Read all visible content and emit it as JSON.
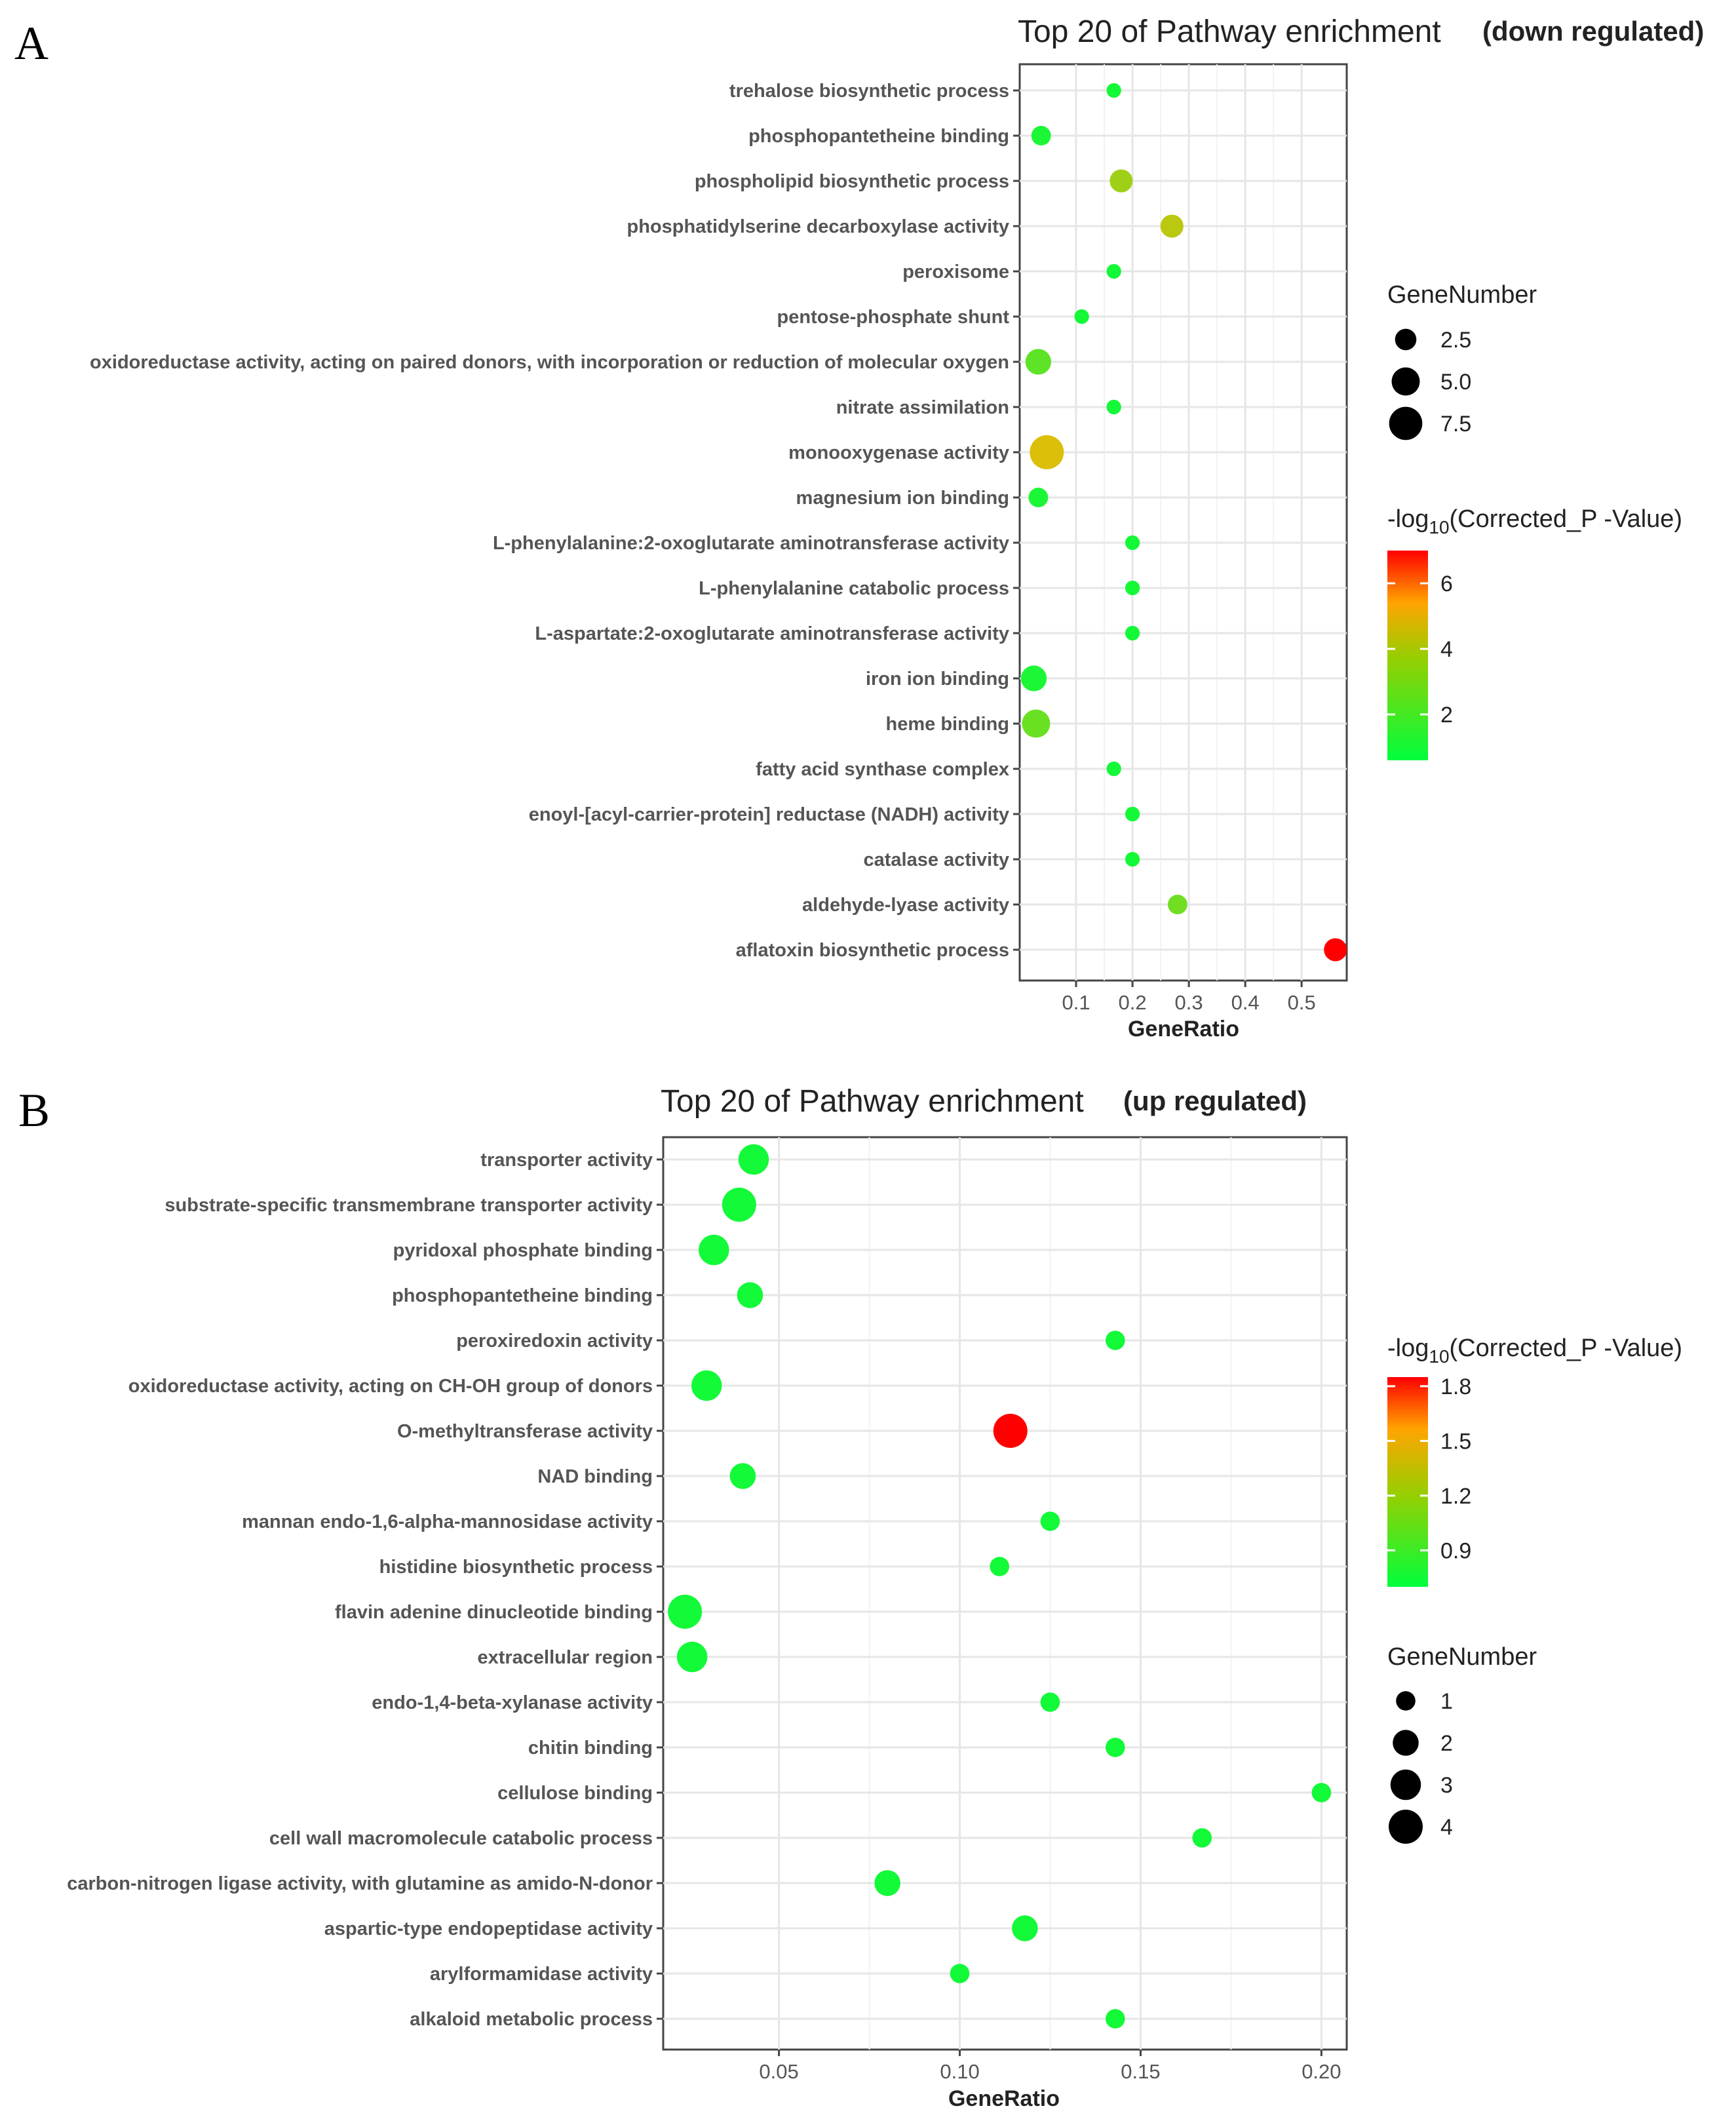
{
  "figure": {
    "panel_a_letter": "A",
    "panel_b_letter": "B"
  },
  "chart_data": [
    {
      "type": "scatter",
      "panel": "A",
      "title": "Top 20 of Pathway enrichment",
      "subtitle": "(down regulated)",
      "xlabel": "GeneRatio",
      "ylabel": "",
      "xlim": [
        0.0,
        0.58
      ],
      "xticks": [
        0.1,
        0.2,
        0.3,
        0.4,
        0.5
      ],
      "xtick_labels": [
        "0.1",
        "0.2",
        "0.3",
        "0.4",
        "0.5"
      ],
      "grid": true,
      "size_legend": {
        "title": "GeneNumber",
        "values": [
          2.5,
          5.0,
          7.5
        ],
        "labels": [
          "2.5",
          "5.0",
          "7.5"
        ]
      },
      "color_legend": {
        "title_prefix": "-log",
        "title_sub": "10",
        "title_suffix": "(Corrected_P -Value)",
        "min": 0.6,
        "max": 7.0,
        "ticks": [
          6,
          4,
          2
        ],
        "tick_labels": [
          "6",
          "4",
          "2"
        ],
        "low_color": "#00ff3c",
        "mid_color": "#ffb400",
        "high_color": "#ff0000"
      },
      "terms": [
        "trehalose biosynthetic process",
        "phosphopantetheine binding",
        "phospholipid biosynthetic process",
        "phosphatidylserine decarboxylase activity",
        "peroxisome",
        "pentose-phosphate shunt",
        "oxidoreductase activity, acting on paired donors, with incorporation or reduction of molecular oxygen",
        "nitrate assimilation",
        "monooxygenase activity",
        "magnesium ion binding",
        "L-phenylalanine:2-oxoglutarate aminotransferase activity",
        "L-phenylalanine catabolic process",
        "L-aspartate:2-oxoglutarate aminotransferase activity",
        "iron ion binding",
        "heme binding",
        "fatty acid synthase complex",
        "enoyl-[acyl-carrier-protein] reductase (NADH) activity",
        "catalase activity",
        "aldehyde-lyase activity",
        "aflatoxin biosynthetic process"
      ],
      "gene_ratio": [
        0.167,
        0.038,
        0.18,
        0.27,
        0.167,
        0.11,
        0.033,
        0.167,
        0.048,
        0.033,
        0.2,
        0.2,
        0.2,
        0.025,
        0.029,
        0.167,
        0.2,
        0.2,
        0.28,
        0.56
      ],
      "gene_number": [
        1,
        2,
        3,
        3,
        1,
        1,
        4,
        1,
        8,
        2,
        1,
        1,
        1,
        4,
        5,
        1,
        1,
        1,
        2,
        3
      ],
      "neg_log10_p": [
        0.9,
        1.0,
        3.0,
        3.4,
        0.9,
        0.9,
        2.0,
        0.9,
        3.9,
        1.0,
        0.9,
        0.9,
        0.9,
        1.0,
        2.2,
        0.9,
        0.9,
        0.9,
        2.3,
        7.0
      ]
    },
    {
      "type": "scatter",
      "panel": "B",
      "title": "Top 20 of Pathway enrichment",
      "subtitle": "(up regulated)",
      "xlabel": "GeneRatio",
      "ylabel": "",
      "xlim": [
        0.018,
        0.207
      ],
      "xticks": [
        0.05,
        0.1,
        0.15,
        0.2
      ],
      "xtick_labels": [
        "0.05",
        "0.10",
        "0.15",
        "0.20"
      ],
      "grid": true,
      "size_legend": {
        "title": "GeneNumber",
        "values": [
          1,
          2,
          3,
          4
        ],
        "labels": [
          "1",
          "2",
          "3",
          "4"
        ]
      },
      "color_legend": {
        "title_prefix": "-log",
        "title_sub": "10",
        "title_suffix": "(Corrected_P -Value)",
        "min": 0.7,
        "max": 1.85,
        "ticks": [
          1.8,
          1.5,
          1.2,
          0.9
        ],
        "tick_labels": [
          "1.8",
          "1.5",
          "1.2",
          "0.9"
        ],
        "low_color": "#00ff3c",
        "mid_color": "#ffb400",
        "high_color": "#ff0000"
      },
      "terms": [
        "transporter activity",
        "substrate-specific transmembrane transporter activity",
        "pyridoxal phosphate binding",
        "phosphopantetheine binding",
        "peroxiredoxin activity",
        "oxidoreductase activity, acting on CH-OH group of donors",
        "O-methyltransferase activity",
        "NAD binding",
        "mannan endo-1,6-alpha-mannosidase activity",
        "histidine biosynthetic process",
        "flavin adenine dinucleotide binding",
        "extracellular region",
        "endo-1,4-beta-xylanase activity",
        "chitin binding",
        "cellulose binding",
        "cell wall macromolecule catabolic process",
        "carbon-nitrogen ligase activity, with glutamine as amido-N-donor",
        "aspartic-type endopeptidase activity",
        "arylformamidase activity",
        "alkaloid metabolic process"
      ],
      "gene_ratio": [
        0.043,
        0.039,
        0.032,
        0.042,
        0.143,
        0.03,
        0.114,
        0.04,
        0.125,
        0.111,
        0.024,
        0.026,
        0.125,
        0.143,
        0.2,
        0.167,
        0.08,
        0.118,
        0.1,
        0.143
      ],
      "gene_number": [
        3,
        4,
        3,
        2,
        1,
        3,
        4,
        2,
        1,
        1,
        4,
        3,
        1,
        1,
        1,
        1,
        2,
        2,
        1,
        1
      ],
      "neg_log10_p": [
        0.75,
        0.75,
        0.75,
        0.75,
        0.75,
        0.75,
        1.85,
        0.75,
        0.75,
        0.75,
        0.75,
        0.75,
        0.75,
        0.75,
        0.75,
        0.75,
        0.75,
        0.75,
        0.75,
        0.75
      ]
    }
  ]
}
